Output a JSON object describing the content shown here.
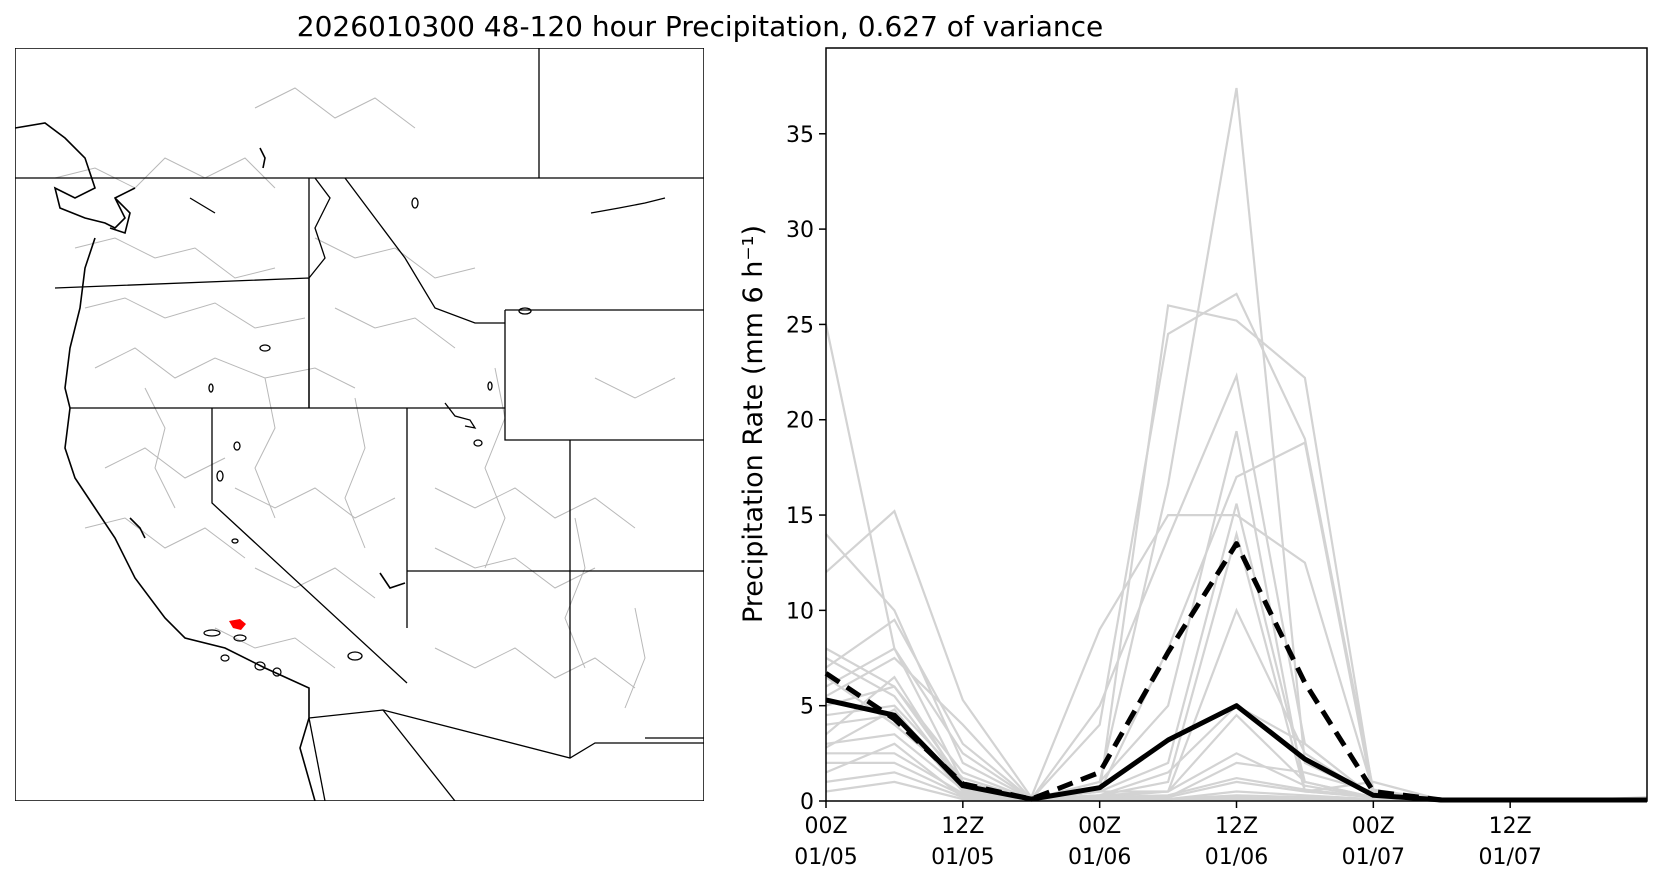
{
  "figure": {
    "title": "2026010300 48-120 hour Precipitation, 0.627 of variance"
  },
  "map": {
    "description_label": "",
    "highlight_color": "#ff0000",
    "border_color": "#000000",
    "basin_color": "#b0b0b0"
  },
  "chart_data": {
    "type": "line",
    "title": "",
    "xlabel": "",
    "ylabel": "Precipitation Rate (mm 6 h⁻¹)",
    "ylim": [
      0,
      39.5
    ],
    "xlim": [
      0,
      36
    ],
    "yticks": [
      0,
      5,
      10,
      15,
      20,
      25,
      30,
      35
    ],
    "xticks": [
      {
        "x": 0,
        "line1": "00Z",
        "line2": "01/05"
      },
      {
        "x": 6,
        "line1": "12Z",
        "line2": "01/05"
      },
      {
        "x": 12,
        "line1": "00Z",
        "line2": "01/06"
      },
      {
        "x": 18,
        "line1": "12Z",
        "line2": "01/06"
      },
      {
        "x": 24,
        "line1": "00Z",
        "line2": "01/07"
      },
      {
        "x": 30,
        "line1": "12Z",
        "line2": "01/07"
      }
    ],
    "x": [
      0,
      3,
      6,
      9,
      12,
      15,
      18,
      21,
      24,
      27,
      30,
      33,
      36
    ],
    "series_style": {
      "ensemble_color": "#d3d3d3",
      "highlight_color": "#000000"
    },
    "ensemble": [
      [
        25.0,
        8.0,
        1.0,
        0.1,
        0.5,
        26.0,
        25.2,
        22.2,
        0.4,
        0.05,
        0.05,
        0.05,
        0.2
      ],
      [
        14.0,
        10.0,
        2.0,
        0.1,
        4.0,
        24.5,
        26.6,
        19.0,
        0.6,
        0.05,
        0.05,
        0.05,
        0.1
      ],
      [
        12.0,
        15.2,
        5.3,
        0.2,
        9.0,
        15.0,
        15.0,
        12.5,
        0.5,
        0.05,
        0.05,
        0.05,
        0.1
      ],
      [
        8.0,
        6.0,
        1.5,
        0.1,
        1.0,
        16.6,
        37.4,
        2.0,
        0.3,
        0.05,
        0.05,
        0.05,
        0.1
      ],
      [
        7.0,
        9.5,
        3.0,
        0.1,
        5.0,
        13.8,
        22.3,
        3.0,
        0.2,
        0.05,
        0.05,
        0.05,
        0.1
      ],
      [
        6.0,
        8.0,
        2.5,
        0.1,
        1.0,
        5.0,
        19.4,
        0.5,
        0.2,
        0.05,
        0.05,
        0.05,
        0.1
      ],
      [
        5.5,
        7.5,
        4.0,
        0.1,
        0.5,
        8.0,
        17.0,
        18.8,
        0.2,
        0.05,
        0.05,
        0.05,
        0.1
      ],
      [
        5.0,
        6.0,
        1.0,
        0.1,
        0.5,
        2.0,
        15.6,
        1.0,
        0.2,
        0.05,
        0.05,
        0.05,
        0.1
      ],
      [
        4.5,
        5.0,
        1.2,
        0.1,
        0.3,
        1.0,
        14.0,
        0.5,
        0.2,
        0.05,
        0.05,
        0.05,
        0.1
      ],
      [
        4.0,
        4.5,
        0.5,
        0.1,
        0.5,
        0.5,
        10.0,
        2.5,
        0.2,
        0.05,
        0.05,
        0.05,
        0.1
      ],
      [
        3.5,
        6.5,
        0.8,
        0.1,
        0.2,
        0.5,
        4.5,
        1.0,
        0.2,
        0.05,
        0.05,
        0.05,
        0.1
      ],
      [
        3.0,
        3.5,
        0.6,
        0.1,
        0.2,
        0.2,
        2.0,
        1.5,
        0.5,
        0.05,
        0.05,
        0.05,
        0.1
      ],
      [
        2.5,
        2.5,
        0.4,
        0.1,
        0.2,
        0.2,
        1.0,
        0.5,
        1.0,
        0.05,
        0.05,
        0.05,
        0.1
      ],
      [
        2.0,
        2.0,
        0.3,
        0.1,
        0.1,
        0.1,
        0.5,
        0.3,
        0.1,
        0.05,
        0.05,
        0.05,
        0.1
      ],
      [
        1.5,
        3.0,
        0.2,
        0.1,
        0.1,
        0.1,
        0.3,
        0.2,
        0.1,
        0.05,
        0.05,
        0.05,
        0.1
      ],
      [
        1.0,
        1.5,
        0.2,
        0.1,
        0.1,
        0.1,
        0.2,
        0.1,
        0.1,
        0.05,
        0.05,
        0.05,
        0.1
      ],
      [
        0.5,
        1.0,
        0.1,
        0.1,
        0.1,
        0.1,
        0.1,
        0.1,
        0.1,
        0.05,
        0.05,
        0.05,
        0.1
      ],
      [
        7.5,
        5.5,
        0.8,
        0.1,
        0.3,
        1.5,
        5.0,
        3.0,
        0.2,
        0.05,
        0.05,
        0.05,
        0.1
      ],
      [
        6.5,
        4.0,
        1.0,
        0.1,
        0.3,
        0.5,
        2.5,
        0.8,
        0.2,
        0.05,
        0.05,
        0.05,
        0.1
      ],
      [
        2.8,
        4.8,
        0.5,
        0.1,
        0.2,
        0.3,
        1.2,
        0.6,
        0.2,
        0.05,
        0.05,
        0.05,
        0.1
      ]
    ],
    "series": [
      {
        "name": "",
        "style": "solid",
        "values": [
          5.3,
          4.5,
          0.8,
          0.1,
          0.7,
          3.2,
          5.0,
          2.2,
          0.3,
          0.05,
          0.05,
          0.05,
          0.05
        ]
      },
      {
        "name": "",
        "style": "dashed",
        "values": [
          6.7,
          4.3,
          0.9,
          0.1,
          1.5,
          7.8,
          13.5,
          6.2,
          0.5,
          0.05,
          0.05,
          0.05,
          0.05
        ]
      }
    ]
  }
}
